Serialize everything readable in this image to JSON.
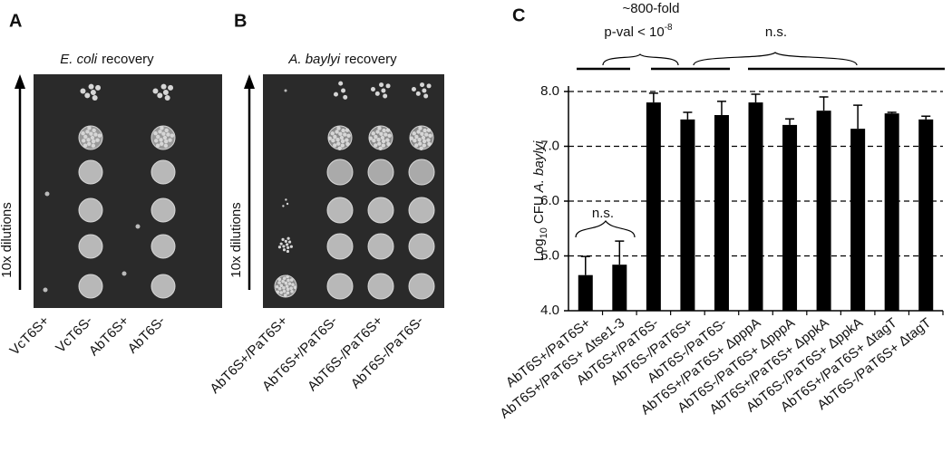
{
  "panels": {
    "A": {
      "letter": "A",
      "title_italic": "E. coli",
      "title_rest": "recovery",
      "ylabel": "10x dilutions",
      "lanes": [
        "VcT6S+",
        "VcT6S-",
        "AbT6S+",
        "AbT6S-"
      ]
    },
    "B": {
      "letter": "B",
      "title_italic": "A. baylyi",
      "title_rest": "recovery",
      "ylabel": "10x dilutions",
      "lanes": [
        "AbT6S+/PaT6S+",
        "AbT6S+/PaT6S-",
        "AbT6S-/PaT6S+",
        "AbT6S-/PaT6S-"
      ]
    },
    "C": {
      "letter": "C"
    }
  },
  "chart_data": {
    "type": "bar",
    "ylabel": [
      "Log",
      "10",
      "CFU",
      "A. baylyi"
    ],
    "categories": [
      "AbT6S+/PaT6S+",
      "AbT6S+/PaT6S+ Δtse1-3",
      "AbT6S+/PaT6S-",
      "AbT6S-/PaT6S+",
      "AbT6S-/PaT6S-",
      "AbT6S+/PaT6S+ ΔpppA",
      "AbT6S-/PaT6S+ ΔpppA",
      "AbT6S+/PaT6S+ ΔppkA",
      "AbT6S-/PaT6S+ ΔppkA",
      "AbT6S+/PaT6S+ ΔtagT",
      "AbT6S-/PaT6S+ ΔtagT"
    ],
    "values": [
      4.65,
      4.84,
      7.8,
      7.49,
      7.57,
      7.8,
      7.39,
      7.65,
      7.32,
      7.6,
      7.49
    ],
    "errors": [
      0.34,
      0.43,
      0.17,
      0.13,
      0.25,
      0.15,
      0.11,
      0.25,
      0.43,
      0.02,
      0.06
    ],
    "color": "#000000",
    "ylim": [
      4,
      8
    ],
    "yticks": [
      {
        "value": 4,
        "label": "4.0"
      },
      {
        "value": 5,
        "label": "5.0"
      },
      {
        "value": 6,
        "label": "6.0"
      },
      {
        "value": 7,
        "label": "7.0"
      },
      {
        "value": 8,
        "label": "8.0"
      }
    ],
    "grid": true,
    "annotations": {
      "fold": "~800-fold",
      "pval": "p-val < 10",
      "pval_exp": "-8",
      "ns_top": "n.s.",
      "ns_low": "n.s."
    }
  }
}
